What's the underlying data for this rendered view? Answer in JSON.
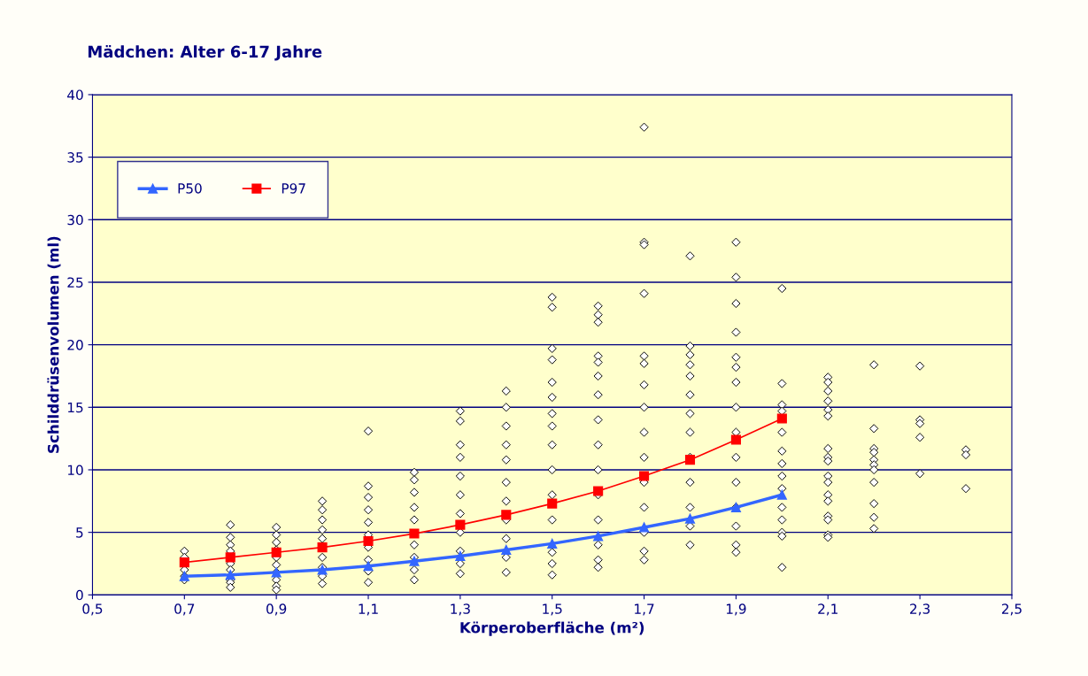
{
  "chart_data": {
    "type": "scatter",
    "title": "Mädchen: Alter 6-17 Jahre",
    "xlabel": "Körperoberfläche (m²)",
    "ylabel": "Schilddrüsenvolumen (ml)",
    "xlim": [
      0.5,
      2.5
    ],
    "ylim": [
      0,
      40
    ],
    "xticks": [
      {
        "value": 0.5,
        "label": "0,5"
      },
      {
        "value": 0.7,
        "label": "0,7"
      },
      {
        "value": 0.9,
        "label": "0,9"
      },
      {
        "value": 1.1,
        "label": "1,1"
      },
      {
        "value": 1.3,
        "label": "1,3"
      },
      {
        "value": 1.5,
        "label": "1,5"
      },
      {
        "value": 1.7,
        "label": "1,7"
      },
      {
        "value": 1.9,
        "label": "1,9"
      },
      {
        "value": 2.1,
        "label": "2,1"
      },
      {
        "value": 2.3,
        "label": "2,3"
      },
      {
        "value": 2.5,
        "label": "2,5"
      }
    ],
    "yticks": [
      0,
      5,
      10,
      15,
      20,
      25,
      30,
      35,
      40
    ],
    "grid": "y",
    "legend": "top left",
    "series": [
      {
        "marker": "diamond",
        "color": "#000000",
        "x": [
          0.7,
          0.7,
          0.7,
          0.7,
          0.7,
          0.8,
          0.8,
          0.8,
          0.8,
          0.8,
          0.8,
          0.8,
          0.8,
          0.8,
          0.9,
          0.9,
          0.9,
          0.9,
          0.9,
          0.9,
          0.9,
          0.9,
          0.9,
          0.9,
          1.0,
          1.0,
          1.0,
          1.0,
          1.0,
          1.0,
          1.0,
          1.0,
          1.0,
          1.1,
          1.1,
          1.1,
          1.1,
          1.1,
          1.1,
          1.1,
          1.1,
          1.1,
          1.1,
          1.2,
          1.2,
          1.2,
          1.2,
          1.2,
          1.2,
          1.2,
          1.2,
          1.2,
          1.3,
          1.3,
          1.3,
          1.3,
          1.3,
          1.3,
          1.3,
          1.3,
          1.3,
          1.3,
          1.3,
          1.4,
          1.4,
          1.4,
          1.4,
          1.4,
          1.4,
          1.4,
          1.4,
          1.4,
          1.4,
          1.4,
          1.5,
          1.5,
          1.5,
          1.5,
          1.5,
          1.5,
          1.5,
          1.5,
          1.5,
          1.5,
          1.5,
          1.5,
          1.5,
          1.5,
          1.5,
          1.6,
          1.6,
          1.6,
          1.6,
          1.6,
          1.6,
          1.6,
          1.6,
          1.6,
          1.6,
          1.6,
          1.6,
          1.6,
          1.6,
          1.6,
          1.7,
          1.7,
          1.7,
          1.7,
          1.7,
          1.7,
          1.7,
          1.7,
          1.7,
          1.7,
          1.7,
          1.7,
          1.7,
          1.7,
          1.7,
          1.8,
          1.8,
          1.8,
          1.8,
          1.8,
          1.8,
          1.8,
          1.8,
          1.8,
          1.8,
          1.8,
          1.8,
          1.8,
          1.9,
          1.9,
          1.9,
          1.9,
          1.9,
          1.9,
          1.9,
          1.9,
          1.9,
          1.9,
          1.9,
          1.9,
          1.9,
          1.9,
          1.9,
          2.0,
          2.0,
          2.0,
          2.0,
          2.0,
          2.0,
          2.0,
          2.0,
          2.0,
          2.0,
          2.0,
          2.0,
          2.0,
          2.0,
          2.1,
          2.1,
          2.1,
          2.1,
          2.1,
          2.1,
          2.1,
          2.1,
          2.1,
          2.1,
          2.1,
          2.1,
          2.1,
          2.1,
          2.1,
          2.1,
          2.1,
          2.2,
          2.2,
          2.2,
          2.2,
          2.2,
          2.2,
          2.2,
          2.2,
          2.2,
          2.2,
          2.2,
          2.3,
          2.3,
          2.3,
          2.3,
          2.3,
          2.4,
          2.4,
          2.4
        ],
        "values": [
          3.5,
          3.0,
          2.0,
          1.5,
          1.2,
          5.6,
          4.6,
          4.0,
          3.5,
          2.5,
          2.0,
          1.2,
          1.0,
          0.6,
          5.4,
          4.8,
          4.2,
          3.6,
          3.0,
          2.4,
          1.8,
          1.2,
          0.7,
          0.4,
          7.5,
          6.8,
          6.0,
          5.2,
          4.5,
          3.0,
          2.2,
          1.5,
          0.9,
          13.1,
          8.7,
          7.8,
          6.8,
          5.8,
          4.8,
          3.8,
          2.8,
          1.9,
          1.0,
          9.8,
          9.2,
          8.2,
          7.0,
          6.0,
          4.0,
          3.0,
          2.0,
          1.2,
          14.7,
          13.9,
          12.0,
          11.0,
          9.5,
          8.0,
          6.5,
          5.0,
          3.5,
          2.5,
          1.7,
          16.3,
          15.0,
          13.5,
          12.0,
          10.8,
          9.0,
          7.5,
          6.0,
          4.5,
          3.0,
          1.8,
          23.8,
          23.0,
          19.7,
          18.8,
          17.0,
          15.8,
          14.5,
          13.5,
          12.0,
          10.0,
          8.0,
          6.0,
          3.4,
          2.5,
          1.6,
          23.1,
          22.4,
          21.8,
          19.1,
          18.6,
          17.5,
          16.0,
          14.0,
          12.0,
          10.0,
          8.0,
          6.0,
          4.0,
          2.8,
          2.2,
          37.4,
          28.2,
          28.0,
          24.1,
          19.1,
          18.5,
          16.8,
          15.0,
          13.0,
          11.0,
          9.0,
          7.0,
          5.0,
          3.5,
          2.8,
          27.1,
          19.9,
          19.2,
          18.4,
          17.5,
          16.0,
          14.5,
          13.0,
          11.0,
          9.0,
          7.0,
          5.5,
          4.0,
          28.2,
          25.4,
          23.3,
          21.0,
          19.0,
          18.2,
          17.0,
          15.0,
          13.0,
          11.0,
          9.0,
          7.0,
          5.5,
          4.0,
          3.4,
          24.5,
          16.9,
          15.2,
          14.7,
          13.0,
          11.5,
          10.5,
          9.5,
          8.5,
          7.0,
          6.0,
          5.0,
          4.7,
          2.2,
          17.4,
          17.0,
          16.3,
          15.5,
          14.8,
          14.3,
          11.7,
          11.0,
          10.7,
          9.5,
          9.0,
          8.0,
          7.5,
          6.3,
          6.0,
          4.8,
          4.6,
          18.4,
          13.3,
          11.7,
          11.4,
          10.8,
          10.4,
          10.0,
          9.0,
          7.3,
          6.2,
          5.3,
          18.3,
          14.0,
          13.7,
          12.6,
          9.7,
          11.6,
          11.2,
          8.5
        ]
      },
      {
        "type": "line",
        "name": "P50",
        "marker": "triangle",
        "color": "#3366ff",
        "x": [
          0.7,
          0.8,
          0.9,
          1.0,
          1.1,
          1.2,
          1.3,
          1.4,
          1.5,
          1.6,
          1.7,
          1.8,
          1.9,
          2.0
        ],
        "values": [
          1.5,
          1.6,
          1.8,
          2.0,
          2.3,
          2.7,
          3.1,
          3.6,
          4.1,
          4.7,
          5.4,
          6.1,
          7.0,
          8.0
        ]
      },
      {
        "type": "line",
        "name": "P97",
        "marker": "square",
        "color": "#ff0000",
        "x": [
          0.7,
          0.8,
          0.9,
          1.0,
          1.1,
          1.2,
          1.3,
          1.4,
          1.5,
          1.6,
          1.7,
          1.8,
          1.9,
          2.0
        ],
        "values": [
          2.6,
          3.0,
          3.4,
          3.8,
          4.3,
          4.9,
          5.6,
          6.4,
          7.3,
          8.3,
          9.5,
          10.8,
          12.4,
          14.1
        ]
      }
    ]
  }
}
